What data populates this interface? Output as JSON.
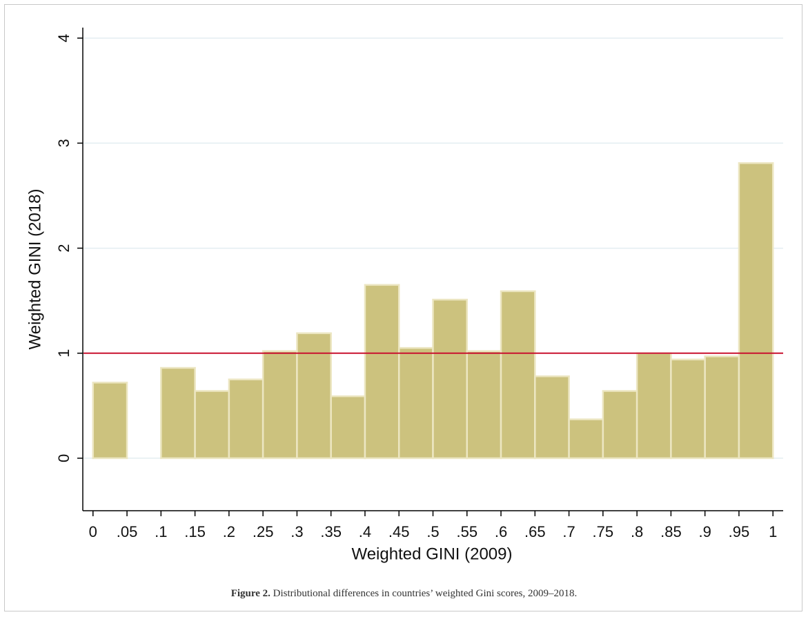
{
  "chart_data": {
    "type": "histogram",
    "x_label": "Weighted GINI (2009)",
    "y_label": "Weighted GINI (2018)",
    "bins": [
      0,
      0.05,
      0.1,
      0.15,
      0.2,
      0.25,
      0.3,
      0.35,
      0.4,
      0.45,
      0.5,
      0.55,
      0.6,
      0.65,
      0.7,
      0.75,
      0.8,
      0.85,
      0.9,
      0.95,
      1
    ],
    "values": [
      0.72,
      0,
      0.86,
      0.64,
      0.75,
      1.02,
      1.19,
      0.59,
      1.65,
      1.05,
      1.51,
      1.02,
      1.59,
      0.78,
      0.37,
      0.64,
      1.0,
      0.94,
      0.97,
      2.81
    ],
    "color": "#ccc27e",
    "edge_color": "#ece6c2",
    "reference_line": 1,
    "reference_color": "#c8102e",
    "xlim": [
      -0.015,
      1.015
    ],
    "ylim": [
      -0.5,
      4.1
    ],
    "xticks": [
      0,
      {
        "value": 0.05,
        "label": ".05"
      },
      {
        "value": 0.1,
        "label": ".1"
      },
      {
        "value": 0.15,
        "label": ".15"
      },
      {
        "value": 0.2,
        "label": ".2"
      },
      {
        "value": 0.25,
        "label": ".25"
      },
      {
        "value": 0.3,
        "label": ".3"
      },
      {
        "value": 0.35,
        "label": ".35"
      },
      {
        "value": 0.4,
        "label": ".4"
      },
      {
        "value": 0.45,
        "label": ".45"
      },
      {
        "value": 0.5,
        "label": ".5"
      },
      {
        "value": 0.55,
        "label": ".55"
      },
      {
        "value": 0.6,
        "label": ".6"
      },
      {
        "value": 0.65,
        "label": ".65"
      },
      {
        "value": 0.7,
        "label": ".7"
      },
      {
        "value": 0.75,
        "label": ".75"
      },
      {
        "value": 0.8,
        "label": ".8"
      },
      {
        "value": 0.85,
        "label": ".85"
      },
      {
        "value": 0.9,
        "label": ".9"
      },
      {
        "value": 0.95,
        "label": ".95"
      },
      1
    ],
    "yticks": [
      0,
      1,
      2,
      3,
      4
    ],
    "grid": true,
    "caption_label": "Figure 2.",
    "caption": "Distributional differences in countries’ weighted Gini scores, 2009–2018."
  }
}
